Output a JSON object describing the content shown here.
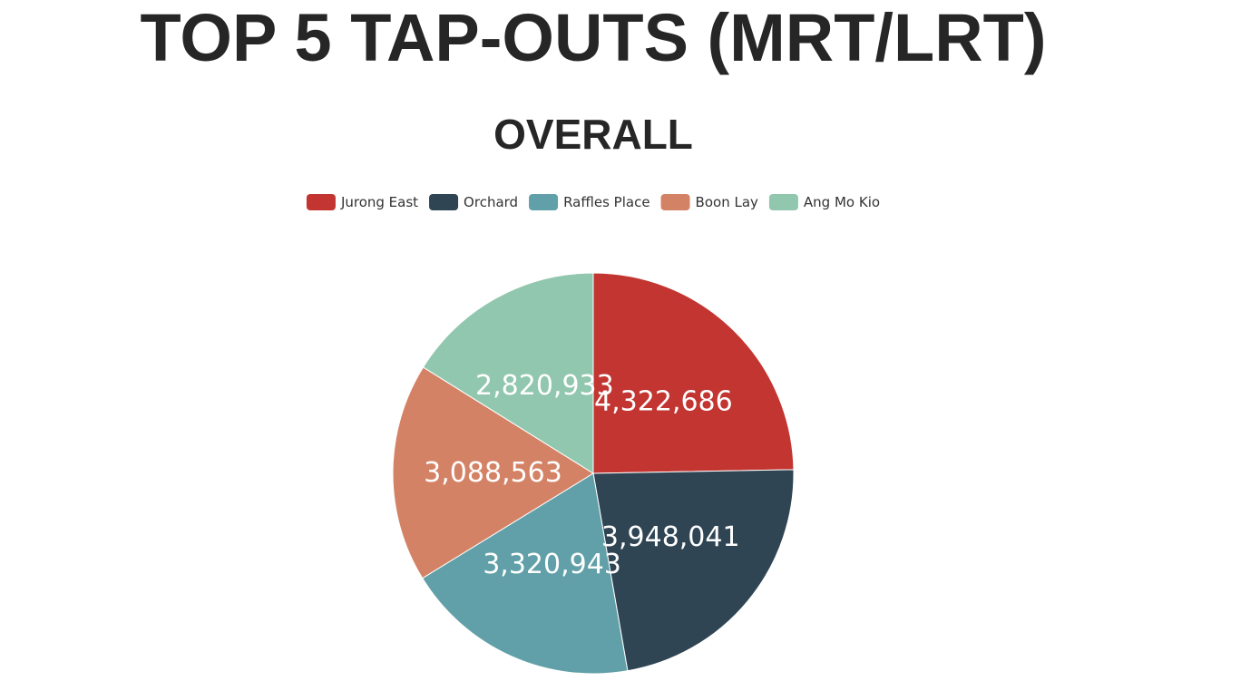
{
  "page": {
    "title": "TOP 5 TAP-OUTS (MRT/LRT)"
  },
  "chart_data": {
    "type": "pie",
    "title": "OVERALL",
    "legend_position": "top-center",
    "categories": [
      "Jurong East",
      "Orchard",
      "Raffles Place",
      "Boon Lay",
      "Ang Mo Kio"
    ],
    "values": [
      4322686,
      3948041,
      3320943,
      3088563,
      2820933
    ],
    "value_labels": [
      "4,322,686",
      "3,948,041",
      "3,320,943",
      "3,088,563",
      "2,820,933"
    ],
    "colors": [
      "#c23531",
      "#2f4554",
      "#61a0a8",
      "#d48265",
      "#91c7ae"
    ],
    "start_angle_deg": 90,
    "direction": "clockwise"
  }
}
